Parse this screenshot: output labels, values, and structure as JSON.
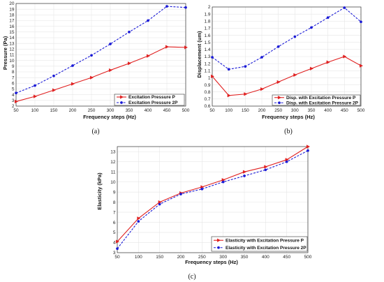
{
  "colors": {
    "series_solid": "#e02020",
    "series_dashed": "#1a1ad6"
  },
  "chart_data": [
    {
      "type": "line",
      "caption": "(a)",
      "xlabel": "Frequency steps (Hz)",
      "ylabel": "Pressure (Pa)",
      "x": [
        50,
        100,
        150,
        200,
        250,
        300,
        350,
        400,
        450,
        500
      ],
      "xlim": [
        50,
        500
      ],
      "ylim": [
        2,
        20
      ],
      "yticks": [
        2,
        3,
        4,
        5,
        6,
        7,
        8,
        9,
        10,
        11,
        12,
        13,
        14,
        15,
        16,
        17,
        18,
        19,
        20
      ],
      "grid": true,
      "legend_position": "bottom-right",
      "series": [
        {
          "name": "Excitation Pressure P",
          "style": "solid",
          "marker": "triangle",
          "values": [
            2.8,
            3.7,
            4.8,
            5.9,
            7.0,
            8.3,
            9.5,
            10.8,
            12.4,
            12.3
          ]
        },
        {
          "name": "Excitation Pressure 2P",
          "style": "dashed",
          "marker": "circle",
          "values": [
            4.3,
            5.6,
            7.3,
            9.1,
            10.9,
            12.9,
            15.0,
            17.0,
            19.5,
            19.3
          ]
        }
      ]
    },
    {
      "type": "line",
      "caption": "(b)",
      "xlabel": "Frequency steps (Hz)",
      "ylabel": "Displacement (um)",
      "x": [
        50,
        100,
        150,
        200,
        250,
        300,
        350,
        400,
        450,
        500
      ],
      "xlim": [
        50,
        500
      ],
      "ylim": [
        0.6,
        2.0
      ],
      "yticks": [
        0.6,
        0.7,
        0.8,
        0.9,
        1,
        1.1,
        1.2,
        1.3,
        1.4,
        1.5,
        1.6,
        1.7,
        1.8,
        1.9,
        2
      ],
      "grid": true,
      "legend_position": "bottom-right",
      "series": [
        {
          "name": "Disp. with Excitation Pressure P",
          "style": "solid",
          "marker": "triangle",
          "values": [
            1.02,
            0.75,
            0.77,
            0.84,
            0.94,
            1.04,
            1.13,
            1.22,
            1.3,
            1.17
          ]
        },
        {
          "name": "Disp. with Excitation Pressure 2P",
          "style": "dashed",
          "marker": "circle",
          "values": [
            1.29,
            1.12,
            1.16,
            1.29,
            1.44,
            1.58,
            1.71,
            1.85,
            1.99,
            1.79
          ]
        }
      ]
    },
    {
      "type": "line",
      "caption": "(c)",
      "xlabel": "Frequency steps (Hz)",
      "ylabel": "Elasticity (kPa)",
      "x": [
        50,
        100,
        150,
        200,
        250,
        300,
        350,
        400,
        450,
        500
      ],
      "xlim": [
        50,
        500
      ],
      "ylim": [
        3,
        13.5
      ],
      "yticks": [
        3,
        4,
        5,
        6,
        7,
        8,
        9,
        10,
        11,
        12,
        13
      ],
      "grid": true,
      "legend_position": "bottom-right",
      "series": [
        {
          "name": "Elasticity with Excitation Pressure P",
          "style": "solid",
          "marker": "triangle",
          "values": [
            4.1,
            6.4,
            8.0,
            8.9,
            9.5,
            10.2,
            11.0,
            11.5,
            12.2,
            13.5
          ]
        },
        {
          "name": "Elasticity with Excitation Pressure 2P",
          "style": "dashed",
          "marker": "circle",
          "values": [
            3.4,
            6.1,
            7.8,
            8.8,
            9.3,
            10.0,
            10.6,
            11.2,
            12.0,
            13.1
          ]
        }
      ]
    }
  ]
}
